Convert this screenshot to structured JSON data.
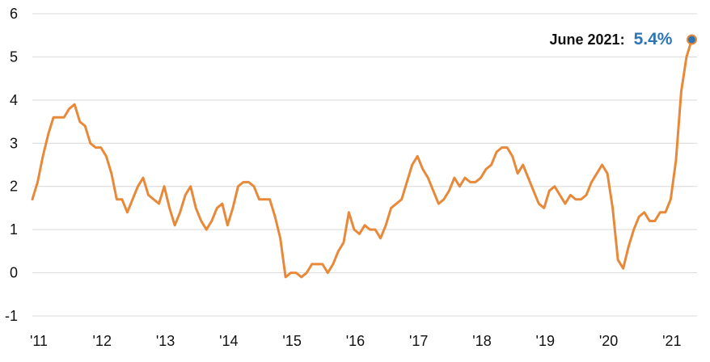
{
  "chart_data": {
    "type": "line",
    "title": "",
    "xlabel": "",
    "ylabel": "",
    "ylim": [
      -1,
      6
    ],
    "xlim": [
      2011.0,
      2021.5
    ],
    "y_ticks": [
      -1,
      0,
      1,
      2,
      3,
      4,
      5,
      6
    ],
    "y_tick_labels": [
      "-1",
      "0",
      "1",
      "2",
      "3",
      "4",
      "5",
      "6"
    ],
    "x_tick_labels": [
      "'11",
      "'12",
      "'13",
      "'14",
      "'15",
      "'16",
      "'17",
      "'18",
      "'19",
      "'20",
      "'21"
    ],
    "x_tick_positions": [
      2011,
      2012,
      2013,
      2014,
      2015,
      2016,
      2017,
      2018,
      2019,
      2020,
      2021
    ],
    "grid": "horizontal",
    "legend": "none",
    "series": [
      {
        "start": "2011-01",
        "frequency": "monthly",
        "color": "#e8893a",
        "values": [
          1.7,
          2.1,
          2.7,
          3.2,
          3.6,
          3.6,
          3.6,
          3.8,
          3.9,
          3.5,
          3.4,
          3.0,
          2.9,
          2.9,
          2.7,
          2.3,
          1.7,
          1.7,
          1.4,
          1.7,
          2.0,
          2.2,
          1.8,
          1.7,
          1.6,
          2.0,
          1.5,
          1.1,
          1.4,
          1.8,
          2.0,
          1.5,
          1.2,
          1.0,
          1.2,
          1.5,
          1.6,
          1.1,
          1.5,
          2.0,
          2.1,
          2.1,
          2.0,
          1.7,
          1.7,
          1.7,
          1.3,
          0.8,
          -0.1,
          0.0,
          0.0,
          -0.1,
          0.0,
          0.2,
          0.2,
          0.2,
          0.0,
          0.2,
          0.5,
          0.7,
          1.4,
          1.0,
          0.9,
          1.1,
          1.0,
          1.0,
          0.8,
          1.1,
          1.5,
          1.6,
          1.7,
          2.1,
          2.5,
          2.7,
          2.4,
          2.2,
          1.9,
          1.6,
          1.7,
          1.9,
          2.2,
          2.0,
          2.2,
          2.1,
          2.1,
          2.2,
          2.4,
          2.5,
          2.8,
          2.9,
          2.9,
          2.7,
          2.3,
          2.5,
          2.2,
          1.9,
          1.6,
          1.5,
          1.9,
          2.0,
          1.8,
          1.6,
          1.8,
          1.7,
          1.7,
          1.8,
          2.1,
          2.3,
          2.5,
          2.3,
          1.5,
          0.3,
          0.1,
          0.6,
          1.0,
          1.3,
          1.4,
          1.2,
          1.2,
          1.4,
          1.4,
          1.7,
          2.6,
          4.2,
          5.0,
          5.4
        ]
      }
    ],
    "annotation": {
      "label": "June 2021:",
      "value_text": "5.4%",
      "date": "2021-06",
      "value": 5.4,
      "text_color": "#111111",
      "value_color": "#2e75b6",
      "marker_color": "#2e75b6",
      "marker_edge_color": "#e8893a"
    }
  }
}
